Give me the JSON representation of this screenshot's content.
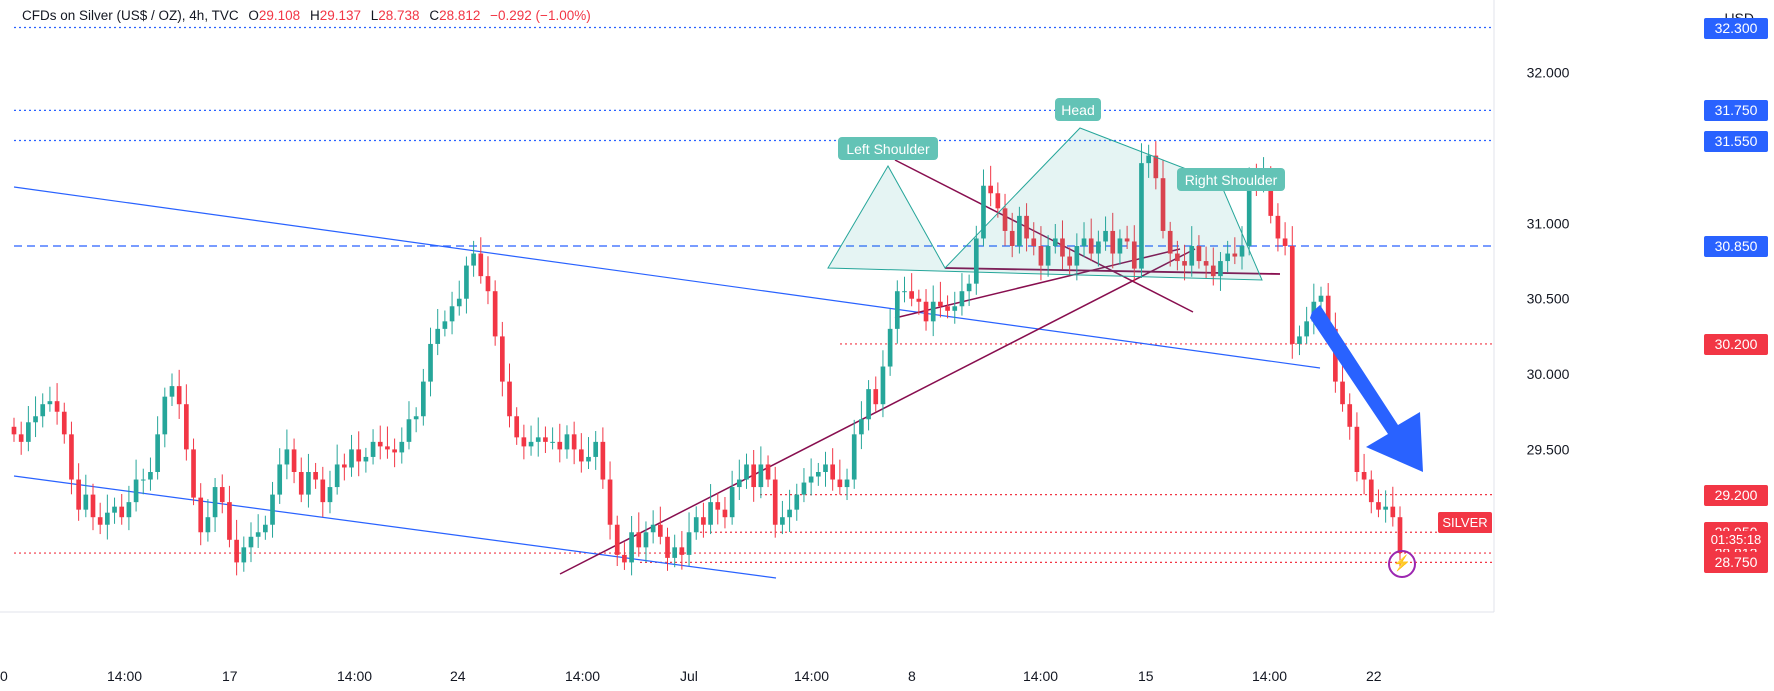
{
  "header": {
    "symbol": "CFDs on Silver (US$ / OZ)",
    "interval": "4h",
    "source": "TVC",
    "open_label": "O",
    "open": "29.108",
    "high_label": "H",
    "high": "29.137",
    "low_label": "L",
    "low": "28.738",
    "close_label": "C",
    "close": "28.812",
    "change": "−0.292 (−1.00%)"
  },
  "currency": "USD",
  "symbol_tag": "SILVER",
  "countdown": "01:35:18",
  "colors": {
    "up": "#26a69a",
    "down": "#f23645",
    "trend": "#2962ff",
    "pattern": "#880e4f",
    "pattern_fill": "#b2dfdb",
    "arrow": "#2962ff"
  },
  "chart_data": {
    "type": "candlestick",
    "title": "CFDs on Silver (US$ / OZ), 4h, TVC",
    "ylim": [
      28.6,
      32.35
    ],
    "y_ticks": [
      "32.000",
      "31.000",
      "30.500",
      "30.000",
      "29.500"
    ],
    "x_ticks": [
      "0",
      "14:00",
      "17",
      "14:00",
      "24",
      "14:00",
      "Jul",
      "14:00",
      "8",
      "14:00",
      "15",
      "14:00",
      "22"
    ],
    "horizontal_levels": [
      {
        "value": 32.3,
        "label": "32.300",
        "style": "dotted",
        "color": "#2962ff"
      },
      {
        "value": 31.75,
        "label": "31.750",
        "style": "dotted",
        "color": "#2962ff"
      },
      {
        "value": 31.55,
        "label": "31.550",
        "style": "dotted",
        "color": "#2962ff"
      },
      {
        "value": 30.85,
        "label": "30.850",
        "style": "dashed",
        "color": "#2962ff"
      },
      {
        "value": 30.2,
        "label": "30.200",
        "style": "dotted",
        "color": "#f23645"
      },
      {
        "value": 29.2,
        "label": "29.200",
        "style": "dotted",
        "color": "#f23645"
      },
      {
        "value": 28.95,
        "label": "28.950",
        "style": "dotted",
        "color": "#f23645"
      },
      {
        "value": 28.812,
        "label": "28.812",
        "style": "dotted",
        "color": "#f23645"
      },
      {
        "value": 28.75,
        "label": "28.750",
        "style": "dotted",
        "color": "#f23645"
      }
    ],
    "annotations": [
      "Head",
      "Left Shoulder",
      "Right Shoulder"
    ],
    "series": [
      {
        "values": [
          29.6,
          29.55,
          29.68,
          29.72,
          29.8,
          29.82,
          29.75,
          29.6,
          29.3,
          29.1,
          29.2,
          29.05,
          29.0,
          29.08,
          29.12,
          29.05,
          29.15,
          29.3,
          29.3,
          29.35,
          29.6,
          29.85,
          29.92,
          29.8,
          29.5,
          29.18,
          28.95,
          29.05,
          29.25,
          29.15,
          28.9,
          28.75,
          28.85,
          28.92,
          28.95,
          29.0,
          29.2,
          29.4,
          29.5,
          29.35,
          29.2,
          29.35,
          29.3,
          29.15,
          29.25,
          29.4,
          29.38,
          29.5,
          29.42,
          29.45,
          29.55,
          29.52,
          29.5,
          29.48,
          29.55,
          29.7,
          29.72,
          29.95,
          30.2,
          30.3,
          30.35,
          30.45,
          30.5,
          30.72,
          30.8,
          30.65,
          30.55,
          30.25,
          29.95,
          29.72,
          29.58,
          29.52,
          29.55,
          29.58,
          29.55,
          29.55,
          29.5,
          29.6,
          29.5,
          29.42,
          29.45,
          29.55,
          29.3,
          29.0,
          28.8,
          28.75,
          28.95,
          28.85,
          28.95,
          29.0,
          28.92,
          28.78,
          28.85,
          28.8,
          28.95,
          29.05,
          29.0,
          29.15,
          29.1,
          29.05,
          29.25,
          29.3,
          29.4,
          29.25,
          29.4,
          29.3,
          29.0,
          29.05,
          29.1,
          29.2,
          29.28,
          29.32,
          29.35,
          29.4,
          29.3,
          29.25,
          29.3,
          29.6,
          29.7,
          29.9,
          29.8,
          30.05,
          30.3,
          30.55,
          30.55,
          30.5,
          30.48,
          30.35,
          30.48,
          30.45,
          30.42,
          30.45,
          30.55,
          30.6,
          30.9,
          31.25,
          31.2,
          31.1,
          30.95,
          30.85,
          31.05,
          30.9,
          30.85,
          30.72,
          30.85,
          30.9,
          30.78,
          30.72,
          30.85,
          30.9,
          30.8,
          30.88,
          30.95,
          30.8,
          30.9,
          30.88,
          30.7,
          31.4,
          31.45,
          31.3,
          30.95,
          30.8,
          30.75,
          30.72,
          30.85,
          30.75,
          30.72,
          30.65,
          30.75,
          30.8,
          30.78,
          30.85,
          31.3,
          31.28,
          31.32,
          31.05,
          30.9,
          30.85,
          30.2,
          30.25,
          30.35,
          30.48,
          30.52,
          30.3,
          29.95,
          29.8,
          29.65,
          29.35,
          29.3,
          29.15,
          29.1,
          29.12,
          29.05,
          28.812
        ]
      }
    ]
  }
}
